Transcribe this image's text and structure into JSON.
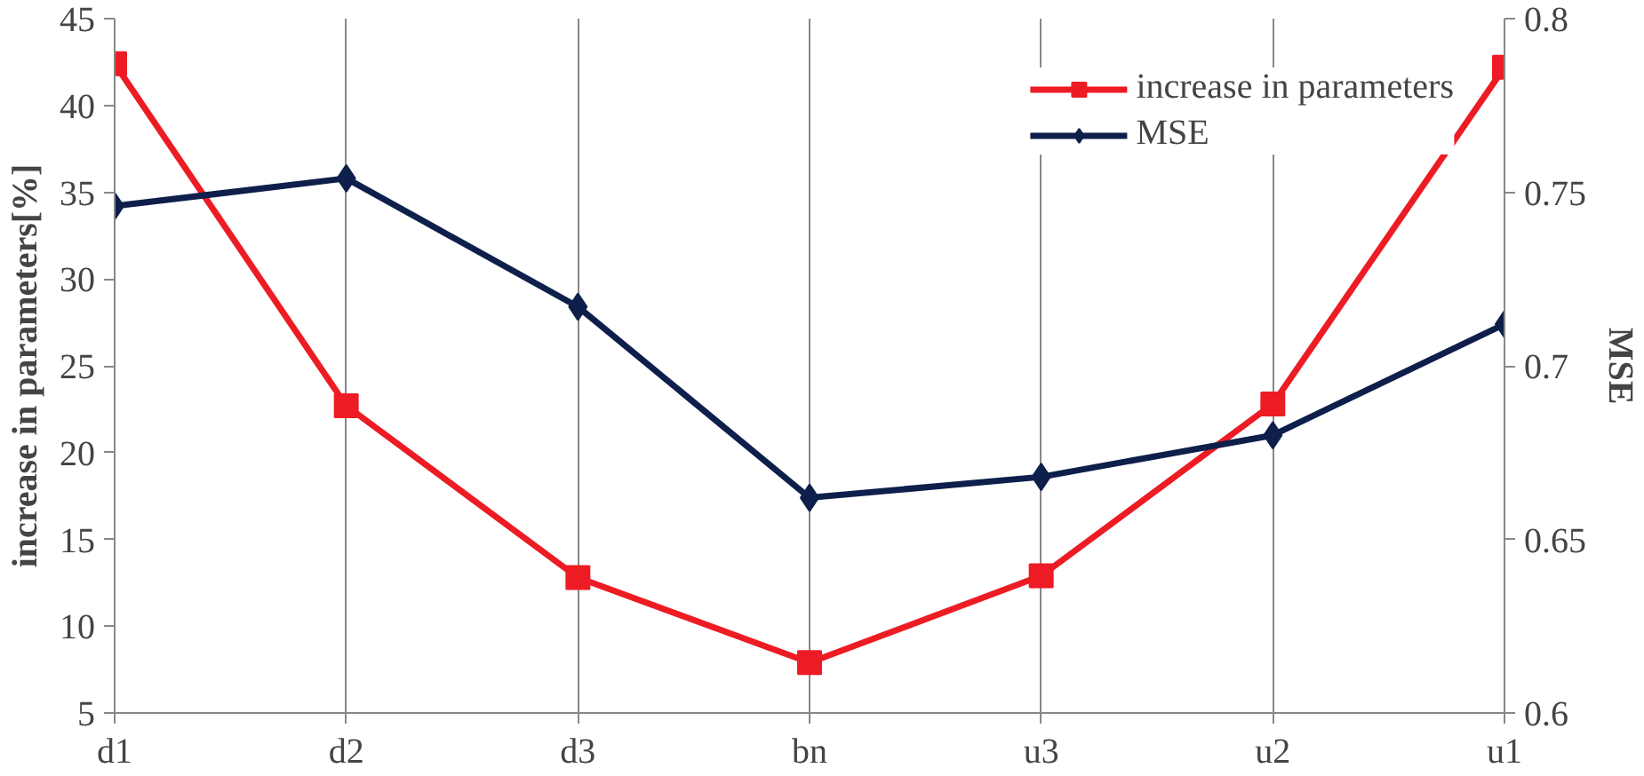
{
  "chart_data": {
    "type": "line",
    "categories": [
      "d1",
      "d2",
      "d3",
      "bn",
      "u3",
      "u2",
      "u1"
    ],
    "ylabel": "increase in parameters[%]",
    "y2label": "MSE",
    "ylim": [
      5,
      45
    ],
    "yticks": [
      5,
      10,
      15,
      20,
      25,
      30,
      35,
      40,
      45
    ],
    "y2lim": [
      0.6,
      0.8
    ],
    "y2ticks": [
      {
        "value": 0.6,
        "label": "0.6"
      },
      {
        "value": 0.65,
        "label": "0.65"
      },
      {
        "value": 0.7,
        "label": "0.7"
      },
      {
        "value": 0.75,
        "label": "0.75"
      },
      {
        "value": 0.8,
        "label": "0.8"
      }
    ],
    "grid": "x",
    "legend": "top right",
    "line_style": "solid",
    "series": [
      {
        "name": "increase in parameters",
        "color": "#ed1c24",
        "marker": "square",
        "values": [
          42.4,
          22.7,
          12.8,
          7.9,
          12.9,
          22.8,
          42.2
        ]
      },
      {
        "name": "MSE",
        "color": "#0d1f4a",
        "marker": "diamond",
        "axis": "y2",
        "values": [
          0.746,
          0.754,
          0.717,
          0.662,
          0.668,
          0.68,
          0.712
        ]
      }
    ]
  }
}
